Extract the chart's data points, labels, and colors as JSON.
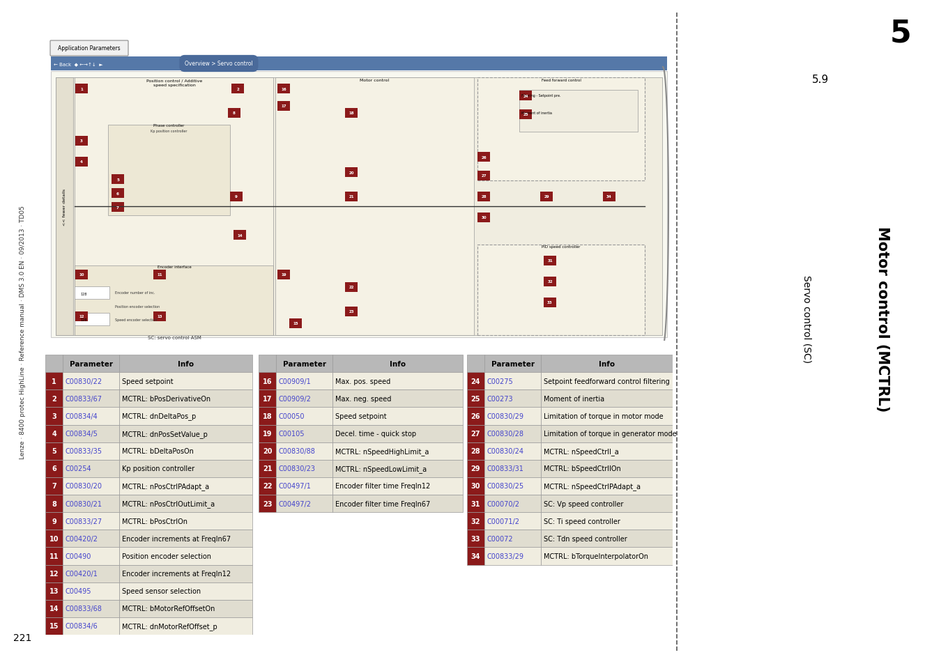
{
  "page_bg": "#ffffff",
  "title_main": "Motor control (MCTRL)",
  "title_sub": "Servo control (SC)",
  "chapter_num": "5",
  "section_num": "5.9",
  "page_num": "221",
  "left_sidebar_text": "Lenze · 8400 protec HighLine · Reference manual · DMS 3.0 EN · 09/2013 · TD05",
  "table_header_bg": "#b8b8b8",
  "table_row_odd_bg": "#f0ede0",
  "table_row_even_bg": "#e0ddd0",
  "table_border_color": "#999999",
  "table_num_bg": "#8b1a1a",
  "table_link_color": "#4444cc",
  "diag_bg": "#f0ede0",
  "diag_border": "#888888",
  "diag_titlebar_bg": "#5578a8",
  "diag_nav_bg": "#e8e8f8",
  "diag_panel_bg": "#f5f2e5",
  "diag_subpanel_bg": "#ede8d5",
  "col1_params": [
    [
      "1",
      "C00830/22",
      "Speed setpoint"
    ],
    [
      "2",
      "C00833/67",
      "MCTRL: bPosDerivativeOn"
    ],
    [
      "3",
      "C00834/4",
      "MCTRL: dnDeltaPos_p"
    ],
    [
      "4",
      "C00834/5",
      "MCTRL: dnPosSetValue_p"
    ],
    [
      "5",
      "C00833/35",
      "MCTRL: bDeltaPosOn"
    ],
    [
      "6",
      "C00254",
      "Kp position controller"
    ],
    [
      "7",
      "C00830/20",
      "MCTRL: nPosCtrlPAdapt_a"
    ],
    [
      "8",
      "C00830/21",
      "MCTRL: nPosCtrlOutLimit_a"
    ],
    [
      "9",
      "C00833/27",
      "MCTRL: bPosCtrlOn"
    ],
    [
      "10",
      "C00420/2",
      "Encoder increments at FreqIn67"
    ],
    [
      "11",
      "C00490",
      "Position encoder selection"
    ],
    [
      "12",
      "C00420/1",
      "Encoder increments at FreqIn12"
    ],
    [
      "13",
      "C00495",
      "Speed sensor selection"
    ],
    [
      "14",
      "C00833/68",
      "MCTRL: bMotorRefOffsetOn"
    ],
    [
      "15",
      "C00834/6",
      "MCTRL: dnMotorRefOffset_p"
    ]
  ],
  "col2_params": [
    [
      "16",
      "C00909/1",
      "Max. pos. speed"
    ],
    [
      "17",
      "C00909/2",
      "Max. neg. speed"
    ],
    [
      "18",
      "C00050",
      "Speed setpoint"
    ],
    [
      "19",
      "C00105",
      "Decel. time - quick stop"
    ],
    [
      "20",
      "C00830/88",
      "MCTRL: nSpeedHighLimit_a"
    ],
    [
      "21",
      "C00830/23",
      "MCTRL: nSpeedLowLimit_a"
    ],
    [
      "22",
      "C00497/1",
      "Encoder filter time FreqIn12"
    ],
    [
      "23",
      "C00497/2",
      "Encoder filter time FreqIn67"
    ]
  ],
  "col3_params": [
    [
      "24",
      "C00275",
      "Setpoint feedforward control filtering"
    ],
    [
      "25",
      "C00273",
      "Moment of inertia"
    ],
    [
      "26",
      "C00830/29",
      "Limitation of torque in motor mode"
    ],
    [
      "27",
      "C00830/28",
      "Limitation of torque in generator mode"
    ],
    [
      "28",
      "C00830/24",
      "MCTRL: nSpeedCtrlI_a"
    ],
    [
      "29",
      "C00833/31",
      "MCTRL: bSpeedCtrlIOn"
    ],
    [
      "30",
      "C00830/25",
      "MCTRL: nSpeedCtrlPAdapt_a"
    ],
    [
      "31",
      "C00070/2",
      "SC: Vp speed controller"
    ],
    [
      "32",
      "C00071/2",
      "SC: Ti speed controller"
    ],
    [
      "33",
      "C00072",
      "SC: Tdn speed controller"
    ],
    [
      "34",
      "C00833/29",
      "MCTRL: bTorqueInterpolatorOn"
    ]
  ]
}
